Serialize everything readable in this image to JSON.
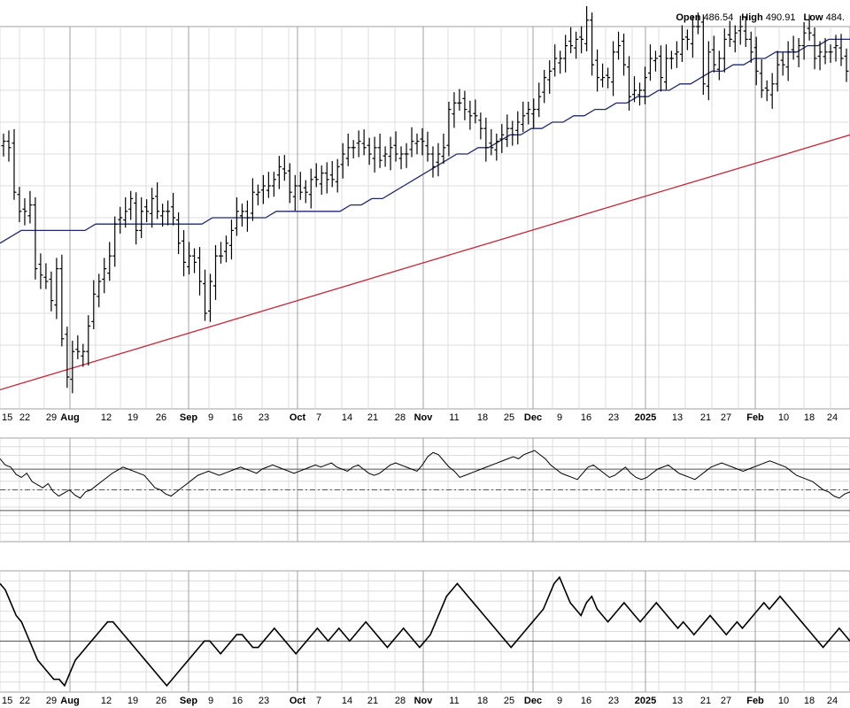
{
  "ohlc_header": {
    "open_label": "Open",
    "open_value": "486.54",
    "high_label": "High",
    "high_value": "490.91",
    "low_label": "Low",
    "low_value": "484."
  },
  "colors": {
    "price_bars": "#000000",
    "ma_50": "#1f2a6e",
    "ma_200": "#c0283a",
    "grid": "#dcdcdc",
    "gridline_month": "#a0a0a0",
    "indicator_line": "#000000"
  },
  "chart_data": [
    {
      "type": "ohlc",
      "x_labels": [
        "15",
        "22",
        "29",
        "Aug",
        "12",
        "19",
        "26",
        "Sep",
        "9",
        "16",
        "23",
        "Oct",
        "7",
        "14",
        "21",
        "28",
        "Nov",
        "11",
        "18",
        "25",
        "Dec",
        "9",
        "16",
        "23",
        "2025",
        "13",
        "21",
        "27",
        "Feb",
        "10",
        "18",
        "24"
      ],
      "bold_labels": [
        "Aug",
        "Sep",
        "Oct",
        "Nov",
        "Dec",
        "2025",
        "Feb"
      ],
      "num_bars": 160,
      "price_close_levels": [
        492,
        491,
        484,
        481,
        481,
        482,
        472,
        471,
        470,
        467,
        472,
        461,
        455,
        459,
        459,
        459,
        463,
        468,
        470,
        472,
        474,
        479,
        480,
        481,
        483,
        478,
        481,
        481,
        483,
        481,
        481,
        481,
        480,
        476,
        473,
        474,
        473,
        470,
        465,
        470,
        474,
        474,
        476,
        478,
        481,
        481,
        480,
        484,
        484,
        485,
        485,
        486,
        488,
        487,
        484,
        485,
        484,
        484,
        486,
        486,
        487,
        486,
        486,
        488,
        490,
        491,
        491,
        492,
        491,
        490,
        491,
        489,
        490,
        491,
        490,
        490,
        490,
        492,
        492,
        492,
        490,
        488,
        490,
        491,
        497,
        498,
        498,
        497,
        496,
        496,
        494,
        491,
        491,
        492,
        493,
        494,
        493,
        495,
        496,
        497,
        497,
        499,
        502,
        503,
        505,
        505,
        507,
        507,
        508,
        508,
        511,
        504,
        502,
        502,
        502,
        506,
        507,
        504,
        499,
        500,
        500,
        502,
        505,
        505,
        502,
        505,
        505,
        506,
        508,
        508,
        510,
        510,
        501,
        506,
        504,
        505,
        508,
        508,
        509,
        510,
        508,
        506,
        503,
        500,
        500,
        501,
        504,
        504,
        506,
        506,
        507,
        509,
        509,
        505,
        506,
        506,
        506,
        507,
        505,
        503
      ],
      "ma50_levels": [
        476,
        477,
        478,
        478,
        478,
        478,
        478,
        478,
        478,
        479,
        479,
        479,
        479,
        479,
        479,
        479,
        479,
        479,
        479,
        479,
        480,
        480,
        480,
        480,
        480,
        480,
        481,
        481,
        481,
        481,
        481,
        481,
        481,
        482,
        482,
        483,
        483,
        484,
        485,
        486,
        487,
        488,
        489,
        490,
        490,
        491,
        491,
        492,
        493,
        493,
        494,
        494,
        495,
        495,
        496,
        496,
        497,
        497,
        498,
        498,
        499,
        499,
        500,
        500,
        501,
        501,
        502,
        503,
        503,
        504,
        504,
        505,
        505,
        506,
        506,
        506,
        507,
        507,
        508,
        508,
        508
      ],
      "ma200_levels": [
        453,
        455,
        457,
        459,
        461,
        463,
        465,
        467,
        469,
        471,
        473,
        475,
        477,
        479,
        481,
        483,
        485,
        487,
        489,
        491,
        493
      ],
      "ylim": [
        450,
        510
      ]
    },
    {
      "type": "line",
      "name": "",
      "band": [
        30,
        70
      ],
      "values": [
        80,
        74,
        72,
        65,
        62,
        66,
        58,
        55,
        52,
        56,
        48,
        44,
        47,
        50,
        45,
        42,
        48,
        50,
        54,
        58,
        62,
        66,
        69,
        72,
        70,
        68,
        66,
        64,
        58,
        52,
        50,
        46,
        44,
        48,
        52,
        56,
        60,
        64,
        66,
        68,
        66,
        64,
        66,
        68,
        70,
        72,
        70,
        68,
        66,
        70,
        72,
        74,
        72,
        70,
        68,
        66,
        68,
        70,
        72,
        74,
        72,
        74,
        76,
        72,
        70,
        68,
        72,
        74,
        70,
        66,
        64,
        66,
        70,
        74,
        76,
        74,
        72,
        70,
        68,
        74,
        82,
        86,
        84,
        78,
        72,
        68,
        62,
        64,
        66,
        68,
        70,
        72,
        74,
        76,
        78,
        80,
        82,
        80,
        84,
        86,
        88,
        84,
        80,
        74,
        70,
        66,
        64,
        62,
        60,
        66,
        72,
        74,
        70,
        66,
        62,
        64,
        68,
        72,
        66,
        62,
        60,
        62,
        66,
        70,
        72,
        74,
        70,
        66,
        64,
        62,
        60,
        64,
        68,
        72,
        74,
        76,
        74,
        72,
        70,
        68,
        70,
        72,
        74,
        76,
        78,
        76,
        74,
        72,
        68,
        64,
        62,
        60,
        58,
        54,
        50,
        48,
        44,
        42,
        46,
        48
      ]
    },
    {
      "type": "line",
      "name": "",
      "baseline_line": true,
      "values": [
        0.9,
        0.8,
        0.6,
        0.4,
        0.3,
        0.1,
        -0.1,
        -0.3,
        -0.4,
        -0.5,
        -0.6,
        -0.6,
        -0.7,
        -0.5,
        -0.3,
        -0.2,
        -0.1,
        0.0,
        0.1,
        0.2,
        0.3,
        0.3,
        0.2,
        0.1,
        0.0,
        -0.1,
        -0.2,
        -0.3,
        -0.4,
        -0.5,
        -0.6,
        -0.7,
        -0.6,
        -0.5,
        -0.4,
        -0.3,
        -0.2,
        -0.1,
        0.0,
        0.0,
        -0.1,
        -0.2,
        -0.1,
        0.0,
        0.1,
        0.1,
        0.0,
        -0.1,
        -0.1,
        0.0,
        0.1,
        0.2,
        0.1,
        0.0,
        -0.1,
        -0.2,
        -0.1,
        0.0,
        0.1,
        0.2,
        0.1,
        0.0,
        0.1,
        0.2,
        0.1,
        0.0,
        0.1,
        0.2,
        0.3,
        0.2,
        0.1,
        0.0,
        -0.1,
        0.0,
        0.1,
        0.2,
        0.1,
        0.0,
        -0.1,
        0.0,
        0.1,
        0.3,
        0.5,
        0.7,
        0.8,
        0.9,
        0.8,
        0.7,
        0.6,
        0.5,
        0.4,
        0.3,
        0.2,
        0.1,
        0.0,
        -0.1,
        0.0,
        0.1,
        0.2,
        0.3,
        0.4,
        0.5,
        0.7,
        0.9,
        1.0,
        0.8,
        0.6,
        0.5,
        0.4,
        0.6,
        0.7,
        0.5,
        0.4,
        0.3,
        0.4,
        0.5,
        0.6,
        0.5,
        0.4,
        0.3,
        0.4,
        0.5,
        0.6,
        0.5,
        0.4,
        0.3,
        0.2,
        0.3,
        0.2,
        0.1,
        0.2,
        0.3,
        0.4,
        0.3,
        0.2,
        0.1,
        0.2,
        0.3,
        0.2,
        0.3,
        0.4,
        0.5,
        0.6,
        0.5,
        0.6,
        0.7,
        0.6,
        0.5,
        0.4,
        0.3,
        0.2,
        0.1,
        0.0,
        -0.1,
        0.0,
        0.1,
        0.2,
        0.1,
        0.0
      ]
    }
  ]
}
